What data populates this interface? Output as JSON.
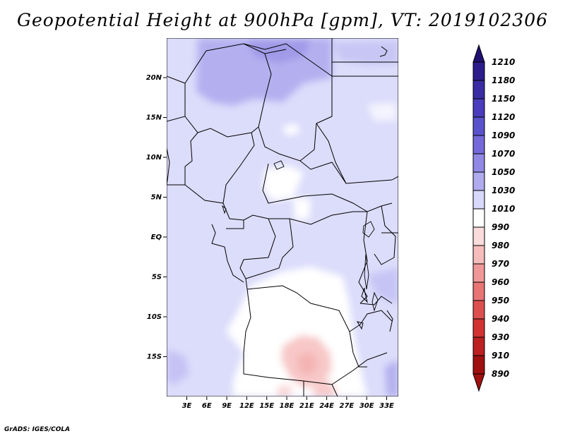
{
  "title": "Geopotential Height at 900hPa [gpm], VT: 2019102306",
  "credit": "GrADS: IGES/COLA",
  "map": {
    "lat_labels": [
      "20N",
      "15N",
      "10N",
      "5N",
      "EQ",
      "5S",
      "10S",
      "15S"
    ],
    "lon_labels": [
      "3E",
      "6E",
      "9E",
      "12E",
      "15E",
      "18E",
      "21E",
      "24E",
      "27E",
      "30E",
      "33E"
    ]
  },
  "colorbar": {
    "levels": [
      "1210",
      "1180",
      "1150",
      "1120",
      "1090",
      "1070",
      "1050",
      "1030",
      "1010",
      "990",
      "980",
      "970",
      "960",
      "950",
      "940",
      "930",
      "910",
      "890"
    ],
    "colors": [
      "#201070",
      "#2c1c8c",
      "#3a2ca4",
      "#4a3cbc",
      "#5a52cc",
      "#7468da",
      "#9088e4",
      "#b0aaee",
      "#d8d8fa",
      "#ffffff",
      "#fbdcdc",
      "#f6bcbc",
      "#f09898",
      "#e87474",
      "#de5050",
      "#d23232",
      "#bc2020",
      "#a01010"
    ]
  }
}
